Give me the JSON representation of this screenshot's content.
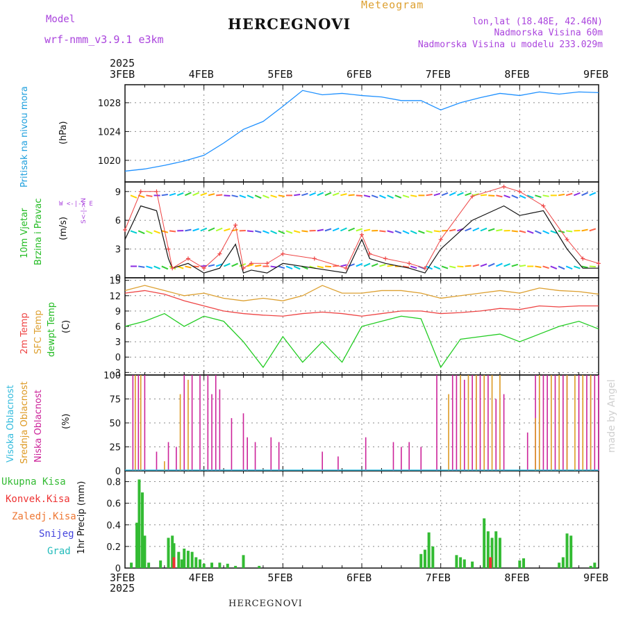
{
  "header": {
    "meteogram_label": "Meteogram",
    "model_label": "Model",
    "model_name": "wrf-nmm_v3.9.1 e3km",
    "station": "HERCEGNOVI",
    "coords": "lon,lat (18.48E, 42.46N)",
    "elevation": "Nadmorska Visina 60m",
    "model_elevation": "Nadmorska Visina u modelu 233.029m",
    "footer_station": "HERCEGNOVI",
    "watermark": "made by Angel"
  },
  "colors": {
    "pressure": "#1e90ff",
    "temp2m": "#ee4444",
    "sfc": "#dda030",
    "dewpt": "#22cc22",
    "high_cloud": "#33bbdd",
    "mid_cloud": "#dd9922",
    "low_cloud": "#cc2299",
    "precip": "#33bb33",
    "conv": "#ee3333",
    "model_label": "#aa44dd"
  },
  "chart_data": [
    {
      "type": "line",
      "panel": "pressure",
      "ylabel_1": "Pritisak na nivou mora",
      "ylabel_2": "(hPa)",
      "ylim": [
        1017,
        1030.5
      ],
      "yticks": [
        "1020",
        "1024",
        "1028"
      ],
      "ytick_values": [
        1020,
        1024,
        1028
      ],
      "x": [
        0,
        0.25,
        0.5,
        0.75,
        1.0,
        1.25,
        1.5,
        1.75,
        2.0,
        2.25,
        2.5,
        2.75,
        3.0,
        3.25,
        3.5,
        3.75,
        4.0,
        4.25,
        4.5,
        4.75,
        5.0,
        5.25,
        5.5,
        5.75,
        6.0
      ],
      "series": [
        {
          "name": "Pritisak",
          "values": [
            1018.5,
            1018.8,
            1019.3,
            1019.9,
            1020.7,
            1022.4,
            1024.3,
            1025.4,
            1027.5,
            1029.7,
            1029.1,
            1029.3,
            1029.0,
            1028.8,
            1028.3,
            1028.3,
            1027.0,
            1028.0,
            1028.7,
            1029.3,
            1029.0,
            1029.5,
            1029.2,
            1029.5,
            1029.4
          ]
        }
      ]
    },
    {
      "type": "line",
      "panel": "wind",
      "ylabel_1": "10m Vjetar",
      "ylabel_2": "Brzina i Pravac",
      "ylabel_3": "(m/s)",
      "compass": "W <-|-> E",
      "compass_ns": "S<-|->N",
      "ylim": [
        0,
        10
      ],
      "yticks": [
        "0",
        "3",
        "6",
        "9"
      ],
      "ytick_values": [
        0,
        3,
        6,
        9
      ],
      "x": [
        0,
        0.2,
        0.4,
        0.55,
        0.6,
        0.8,
        1.0,
        1.2,
        1.4,
        1.5,
        1.6,
        1.8,
        2.0,
        2.4,
        2.8,
        3.0,
        3.1,
        3.3,
        3.6,
        3.8,
        4.0,
        4.4,
        4.8,
        5.0,
        5.3,
        5.6,
        5.8,
        6.0
      ],
      "series": [
        {
          "name": "Brzina",
          "values": [
            4.0,
            7.5,
            7.0,
            2.0,
            1.0,
            1.5,
            0.5,
            1.0,
            3.5,
            0.5,
            0.8,
            0.5,
            1.5,
            1.0,
            0.5,
            4.0,
            2.0,
            1.5,
            1.0,
            0.5,
            3.0,
            6.0,
            7.5,
            6.5,
            7.0,
            3.0,
            1.0,
            1.0
          ]
        },
        {
          "name": "Udari",
          "values": [
            5.0,
            9.0,
            9.0,
            3.0,
            1.0,
            2.0,
            1.0,
            2.5,
            5.5,
            1.0,
            1.5,
            1.5,
            2.5,
            2.0,
            1.0,
            4.5,
            2.5,
            2.0,
            1.5,
            1.0,
            4.0,
            8.5,
            9.5,
            9.0,
            7.5,
            4.0,
            2.0,
            1.5
          ]
        }
      ]
    },
    {
      "type": "line",
      "panel": "temperature",
      "ylabel_1": "2m Temp",
      "ylabel_2": "SFC Temp",
      "ylabel_3": "dewpt Temp",
      "ylabel_4": "(C)",
      "ylim": [
        -3.5,
        15.5
      ],
      "yticks": [
        "-3",
        "0",
        "3",
        "6",
        "9",
        "12",
        "15"
      ],
      "ytick_values": [
        -3,
        0,
        3,
        6,
        9,
        12,
        15
      ],
      "x": [
        0,
        0.25,
        0.5,
        0.75,
        1.0,
        1.25,
        1.5,
        1.75,
        2.0,
        2.25,
        2.5,
        2.75,
        3.0,
        3.25,
        3.5,
        3.75,
        4.0,
        4.25,
        4.5,
        4.75,
        5.0,
        5.25,
        5.5,
        5.75,
        6.0
      ],
      "series": [
        {
          "name": "2m Temp",
          "values": [
            12.5,
            13.0,
            12.3,
            11.0,
            10.0,
            9.0,
            8.5,
            8.2,
            8.0,
            8.5,
            8.8,
            8.5,
            8.0,
            8.5,
            9.0,
            9.0,
            8.5,
            8.7,
            9.0,
            9.5,
            9.3,
            10.0,
            9.8,
            10.0,
            10.0
          ]
        },
        {
          "name": "SFC Temp",
          "values": [
            13.0,
            14.0,
            13.0,
            12.0,
            12.5,
            11.5,
            11.0,
            11.5,
            11.0,
            12.0,
            14.0,
            12.5,
            12.5,
            13.0,
            13.0,
            12.5,
            11.5,
            12.0,
            12.5,
            13.0,
            12.5,
            13.5,
            13.0,
            12.8,
            12.3
          ]
        },
        {
          "name": "dewpt Temp",
          "values": [
            6.0,
            7.0,
            8.5,
            6.0,
            8.0,
            7.0,
            3.0,
            -2.0,
            4.0,
            -1.0,
            3.0,
            -1.0,
            6.0,
            7.0,
            8.0,
            7.5,
            -2.0,
            3.5,
            4.0,
            4.5,
            3.0,
            4.5,
            6.0,
            7.0,
            5.5
          ]
        }
      ]
    },
    {
      "type": "bar",
      "panel": "cloud",
      "ylabel_1": "Visoka Oblacnost",
      "ylabel_2": "Srednja Oblacnost",
      "ylabel_3": "Niska Oblacnost",
      "ylabel_4": "(%)",
      "ylim": [
        0,
        100
      ],
      "yticks": [
        "0",
        "25",
        "50",
        "75",
        "100"
      ],
      "ytick_values": [
        0,
        25,
        50,
        75,
        100
      ],
      "series": [
        {
          "name": "Niska Oblacnost",
          "x": [
            0.1,
            0.17,
            0.25,
            0.4,
            0.55,
            0.65,
            0.75,
            0.85,
            0.95,
            1.05,
            1.1,
            1.15,
            1.2,
            1.35,
            1.5,
            1.55,
            1.65,
            1.85,
            1.95,
            2.5,
            2.7,
            3.05,
            3.4,
            3.5,
            3.6,
            3.75,
            3.95,
            4.15,
            4.2,
            4.3,
            4.4,
            4.45,
            4.5,
            4.6,
            4.7,
            4.8,
            5.1,
            5.2,
            5.25,
            5.3,
            5.35,
            5.45,
            5.55,
            5.6,
            5.75,
            5.85,
            5.9,
            5.95,
            6.0
          ],
          "values": [
            100,
            100,
            100,
            20,
            30,
            25,
            100,
            100,
            100,
            100,
            80,
            100,
            85,
            55,
            60,
            35,
            30,
            35,
            30,
            20,
            15,
            35,
            30,
            25,
            30,
            25,
            100,
            100,
            100,
            95,
            100,
            100,
            100,
            100,
            75,
            80,
            40,
            100,
            100,
            100,
            100,
            100,
            100,
            100,
            100,
            100,
            100,
            100,
            100
          ]
        },
        {
          "name": "Srednja Oblacnost",
          "x": [
            0.13,
            0.2,
            0.5,
            0.7,
            0.8,
            4.1,
            4.25,
            4.35,
            4.45,
            4.55,
            4.65,
            4.75,
            5.2,
            5.25,
            5.4,
            5.5,
            5.6,
            5.7,
            5.8,
            5.9
          ],
          "values": [
            100,
            100,
            10,
            80,
            95,
            80,
            100,
            100,
            100,
            100,
            100,
            100,
            55,
            100,
            100,
            100,
            100,
            100,
            100,
            100
          ]
        }
      ]
    },
    {
      "type": "bar",
      "panel": "precip",
      "legend": [
        "Ukupna Kisa",
        "Konvek.Kisa",
        "Zaledj.Kisa",
        "Snijeg",
        "Grad"
      ],
      "ylabel": "1hr Precip (mm)",
      "ylim": [
        0,
        0.9
      ],
      "yticks": [
        "0",
        "0.2",
        "0.4",
        "0.6",
        "0.8"
      ],
      "ytick_values": [
        0,
        0.2,
        0.4,
        0.6,
        0.8
      ],
      "x_labels": [
        "3FEB",
        "4FEB",
        "5FEB",
        "6FEB",
        "7FEB",
        "8FEB",
        "9FEB"
      ],
      "year": "2025",
      "series": [
        {
          "name": "Ukupna Kisa",
          "x": [
            0.08,
            0.15,
            0.18,
            0.22,
            0.25,
            0.3,
            0.45,
            0.55,
            0.6,
            0.62,
            0.68,
            0.72,
            0.75,
            0.8,
            0.85,
            0.9,
            0.95,
            1.0,
            1.1,
            1.2,
            1.3,
            1.4,
            1.5,
            1.7,
            3.75,
            3.8,
            3.85,
            3.9,
            4.2,
            4.25,
            4.3,
            4.4,
            4.55,
            4.6,
            4.65,
            4.7,
            4.75,
            5.0,
            5.05,
            5.5,
            5.55,
            5.6,
            5.65,
            5.9,
            5.95
          ],
          "values": [
            0.05,
            0.42,
            0.82,
            0.7,
            0.3,
            0.05,
            0.07,
            0.28,
            0.3,
            0.23,
            0.15,
            0.08,
            0.18,
            0.16,
            0.15,
            0.1,
            0.08,
            0.04,
            0.05,
            0.05,
            0.04,
            0.02,
            0.12,
            0.02,
            0.13,
            0.17,
            0.33,
            0.2,
            0.12,
            0.1,
            0.08,
            0.06,
            0.46,
            0.34,
            0.28,
            0.34,
            0.28,
            0.07,
            0.09,
            0.05,
            0.1,
            0.32,
            0.3,
            0.02,
            0.05
          ]
        },
        {
          "name": "Konvek.Kisa",
          "x": [
            0.62,
            4.63
          ],
          "values": [
            0.1,
            0.1
          ]
        }
      ]
    }
  ]
}
